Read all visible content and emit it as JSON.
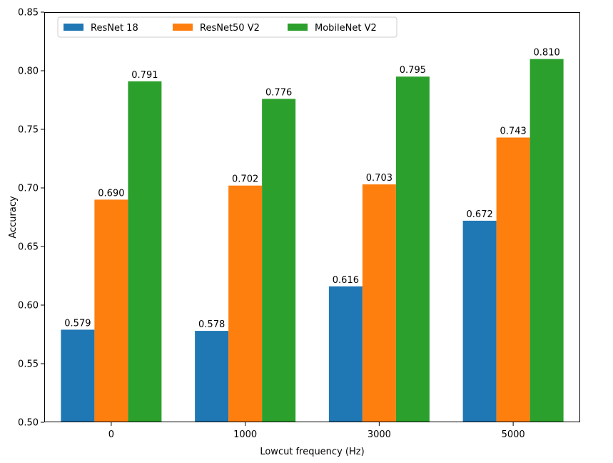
{
  "chart_data": {
    "type": "bar",
    "xlabel": "Lowcut frequency (Hz)",
    "ylabel": "Accuracy",
    "categories": [
      "0",
      "1000",
      "3000",
      "5000"
    ],
    "ylim": [
      0.5,
      0.85
    ],
    "yticks": [
      "0.50",
      "0.55",
      "0.60",
      "0.65",
      "0.70",
      "0.75",
      "0.80",
      "0.85"
    ],
    "grid": false,
    "legend_position": "top-left",
    "series": [
      {
        "name": "ResNet 18",
        "color": "#1f77b4",
        "values": [
          0.579,
          0.578,
          0.616,
          0.672
        ],
        "labels": [
          "0.579",
          "0.578",
          "0.616",
          "0.672"
        ]
      },
      {
        "name": "ResNet50 V2",
        "color": "#ff7f0e",
        "values": [
          0.69,
          0.702,
          0.703,
          0.743
        ],
        "labels": [
          "0.690",
          "0.702",
          "0.703",
          "0.743"
        ]
      },
      {
        "name": "MobileNet V2",
        "color": "#2ca02c",
        "values": [
          0.791,
          0.776,
          0.795,
          0.81
        ],
        "labels": [
          "0.791",
          "0.776",
          "0.795",
          "0.810"
        ]
      }
    ]
  }
}
